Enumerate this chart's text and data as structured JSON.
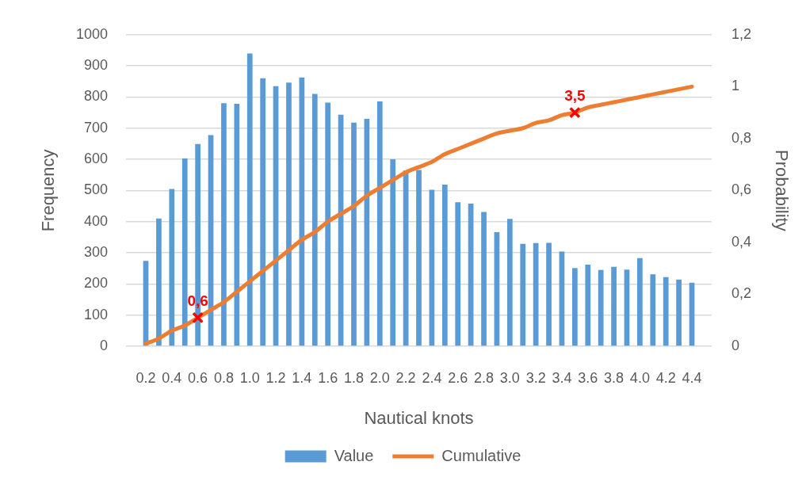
{
  "chart_data": {
    "type": "bar",
    "xlabel": "Nautical knots",
    "ylabel": "Frequency",
    "y2label": "Probability",
    "x": [
      0.2,
      0.3,
      0.4,
      0.5,
      0.6,
      0.7,
      0.8,
      0.9,
      1.0,
      1.1,
      1.2,
      1.3,
      1.4,
      1.5,
      1.6,
      1.7,
      1.8,
      1.9,
      2.0,
      2.1,
      2.2,
      2.3,
      2.4,
      2.5,
      2.6,
      2.7,
      2.8,
      2.9,
      3.0,
      3.1,
      3.2,
      3.3,
      3.4,
      3.5,
      3.6,
      3.7,
      3.8,
      3.9,
      4.0,
      4.1,
      4.2,
      4.3,
      4.4
    ],
    "series": [
      {
        "name": "Value",
        "color": "#5b9bd5",
        "values": [
          274,
          410,
          505,
          603,
          649,
          678,
          780,
          778,
          940,
          860,
          835,
          846,
          863,
          810,
          782,
          743,
          718,
          730,
          786,
          600,
          564,
          566,
          502,
          519,
          462,
          458,
          431,
          366,
          409,
          329,
          331,
          332,
          304,
          251,
          262,
          245,
          255,
          246,
          283,
          231,
          222,
          214,
          204
        ]
      },
      {
        "name": "Cumulative",
        "type": "line",
        "axis": "y2",
        "color": "#ed7d31",
        "values": [
          0.01,
          0.03,
          0.06,
          0.08,
          0.11,
          0.14,
          0.17,
          0.21,
          0.25,
          0.29,
          0.33,
          0.37,
          0.41,
          0.44,
          0.48,
          0.51,
          0.54,
          0.58,
          0.61,
          0.64,
          0.67,
          0.69,
          0.71,
          0.74,
          0.76,
          0.78,
          0.8,
          0.82,
          0.83,
          0.84,
          0.86,
          0.87,
          0.89,
          0.9,
          0.92,
          0.93,
          0.94,
          0.95,
          0.96,
          0.97,
          0.98,
          0.99,
          1
        ]
      },
      {
        "type": "scatter",
        "axis": "y2",
        "color": "#ff0000",
        "marker": "cross",
        "x": [
          0.6,
          3.5
        ],
        "values": [
          0.11,
          0.9
        ]
      }
    ],
    "annotations": [
      {
        "text": "0,6",
        "x": 0.6,
        "y": 92
      },
      {
        "text": "3,5",
        "x": 3.5,
        "y": 750
      }
    ],
    "xlim": [
      0.15,
      4.45
    ],
    "xticks": [
      0.2,
      0.4,
      0.6,
      0.8,
      {
        "value": 1,
        "label": "1.0"
      },
      1.2,
      1.4,
      1.6,
      1.8,
      {
        "value": 2,
        "label": "2.0"
      },
      2.2,
      2.4,
      2.6,
      2.8,
      {
        "value": 3,
        "label": "3.0"
      },
      3.2,
      3.4,
      3.6,
      3.8,
      {
        "value": 4,
        "label": "4.0"
      },
      4.2,
      4.4
    ],
    "ylim": [
      0,
      1000
    ],
    "yticks": [
      0,
      100,
      200,
      300,
      400,
      500,
      600,
      700,
      800,
      900,
      1000
    ],
    "y2lim": [
      0,
      1.2
    ],
    "y2ticks": [
      0,
      {
        "value": 0.2,
        "label": "0,2"
      },
      {
        "value": 0.4,
        "label": "0,4"
      },
      {
        "value": 0.6,
        "label": "0,6"
      },
      {
        "value": 0.8,
        "label": "0,8"
      },
      1,
      {
        "value": 1.2,
        "label": "1,2"
      }
    ],
    "grid": "y",
    "legend": "bottom"
  }
}
